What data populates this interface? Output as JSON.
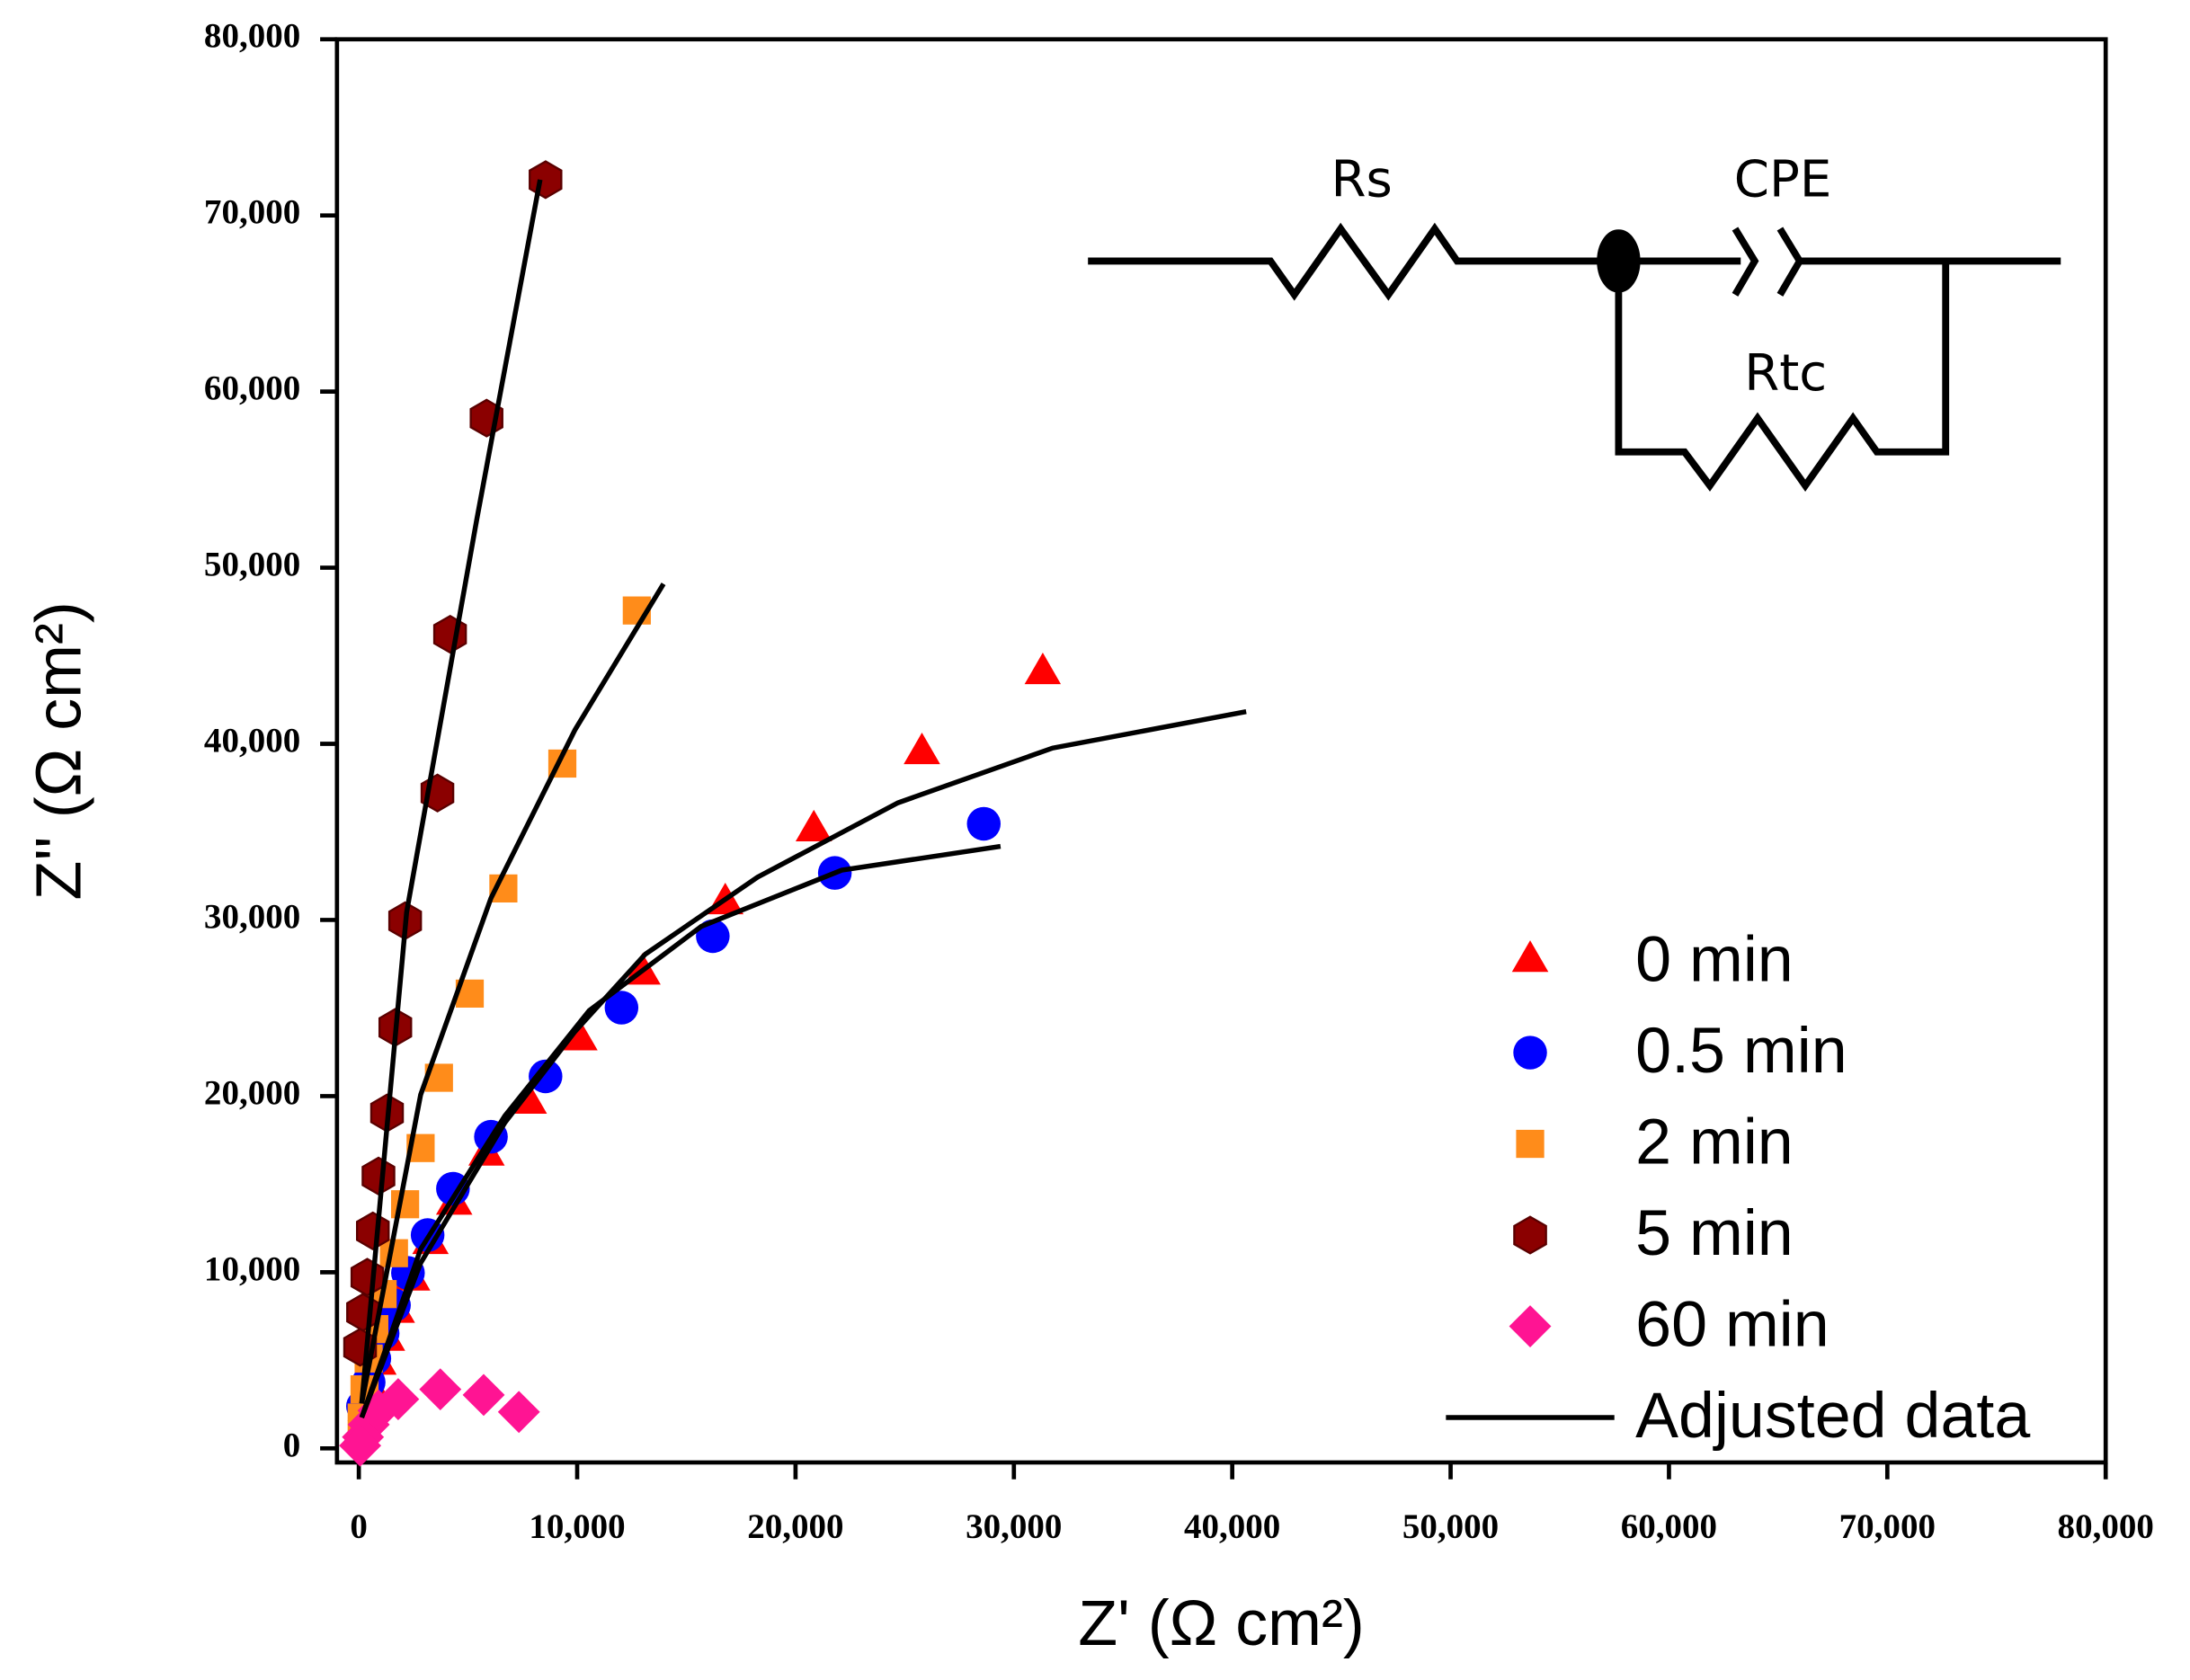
{
  "chart_data": {
    "type": "scatter",
    "x_label": "Z' (Ω cm²)",
    "y_label": "Z'' (Ω cm²)",
    "xlim": [
      -1000,
      80000
    ],
    "ylim": [
      -800,
      80000
    ],
    "xticks": [
      0,
      {
        "value": 10000,
        "label": "10,000"
      },
      {
        "value": 20000,
        "label": "20,000"
      },
      {
        "value": 30000,
        "label": "30,000"
      },
      {
        "value": 40000,
        "label": "40,000"
      },
      {
        "value": 50000,
        "label": "50,000"
      },
      {
        "value": 60000,
        "label": "60,000"
      },
      {
        "value": 70000,
        "label": "70,000"
      },
      {
        "value": 80000,
        "label": "80,000"
      }
    ],
    "yticks": [
      0,
      {
        "value": 10000,
        "label": "10,000"
      },
      {
        "value": 20000,
        "label": "20,000"
      },
      {
        "value": 30000,
        "label": "30,000"
      },
      {
        "value": 40000,
        "label": "40,000"
      },
      {
        "value": 50000,
        "label": "50,000"
      },
      {
        "value": 60000,
        "label": "60,000"
      },
      {
        "value": 70000,
        "label": "70,000"
      },
      {
        "value": 80000,
        "label": "80,000"
      }
    ],
    "legend": "lower right",
    "series": [
      {
        "name": "0 min",
        "color": "#ff0000",
        "marker": "triangle",
        "x": [
          31320,
          25790,
          20840,
          16780,
          12990,
          10100,
          7780,
          5850,
          4370,
          3280,
          2440,
          1740,
          1290,
          900,
          580,
          320,
          130
        ],
        "y": [
          43985,
          39440,
          35060,
          30920,
          26930,
          23190,
          19600,
          16650,
          13860,
          11630,
          9560,
          7730,
          6140,
          4780,
          3350,
          2150,
          960
        ]
      },
      {
        "name": "0.5 min",
        "color": "#0000ff",
        "marker": "circle",
        "x": [
          28620,
          21800,
          16210,
          12030,
          8550,
          6050,
          4310,
          3150,
          2250,
          1610,
          1090,
          710,
          450,
          190
        ],
        "y": [
          35460,
          32670,
          29080,
          25020,
          21120,
          17690,
          14740,
          12110,
          9960,
          8130,
          6530,
          5100,
          3750,
          2390
        ]
      },
      {
        "name": "2 min",
        "color": "#ff8c1a",
        "marker": "square",
        "x": [
          12730,
          9320,
          6620,
          5080,
          3670,
          2830,
          2120,
          1610,
          1090,
          710,
          450,
          260,
          130
        ],
        "y": [
          47570,
          38880,
          31790,
          25820,
          21040,
          17050,
          13860,
          11080,
          8760,
          6770,
          5100,
          3350,
          1750
        ]
      },
      {
        "name": "5 min",
        "color": "#8b0000",
        "marker": "hexagon",
        "x": [
          8550,
          5850,
          4180,
          3600,
          2120,
          1670,
          1290,
          900,
          640,
          390,
          190,
          60
        ],
        "y": [
          72030,
          58490,
          46220,
          37210,
          29960,
          23900,
          19040,
          15460,
          12350,
          9720,
          7730,
          5740
        ]
      },
      {
        "name": "60 min",
        "color": "#ff1493",
        "marker": "diamond",
        "x": [
          7330,
          5720,
          3730,
          1800,
          900,
          450,
          190,
          60
        ],
        "y": [
          2070,
          3030,
          3350,
          2790,
          2150,
          1350,
          640,
          160
        ]
      }
    ],
    "fit": {
      "name": "Adjusted data",
      "color": "#000000",
      "lines": [
        {
          "x": [
            130,
            2830,
            6690,
            9900,
            13120,
            18260,
            24690,
            31770,
            40640
          ],
          "y": [
            1750,
            10520,
            18490,
            23670,
            28050,
            32430,
            36650,
            39760,
            41830
          ]
        },
        {
          "x": [
            130,
            2830,
            6690,
            10550,
            15690,
            22120,
            29390
          ],
          "y": [
            1750,
            11310,
            18880,
            24860,
            29640,
            32830,
            34180
          ]
        },
        {
          "x": [
            130,
            2830,
            6050,
            9900,
            13950
          ],
          "y": [
            2550,
            20080,
            31240,
            40800,
            49080
          ]
        },
        {
          "x": [
            130,
            2190,
            5400,
            8300
          ],
          "y": [
            2550,
            30440,
            52750,
            72030
          ]
        }
      ]
    },
    "inset": {
      "resistor_1": "Rs",
      "capacitor": "CPE",
      "resistor_2": "Rtc"
    }
  }
}
